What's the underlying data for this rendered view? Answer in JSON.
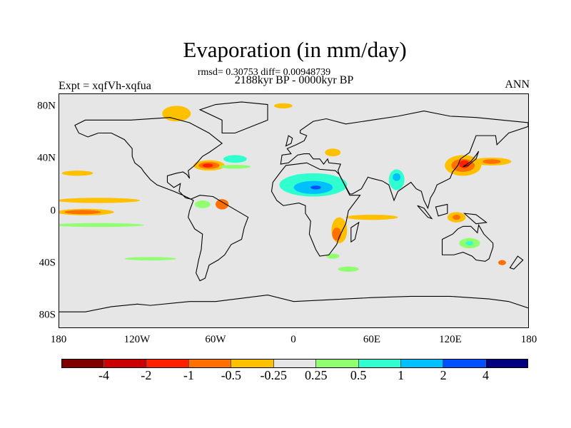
{
  "title": "Evaporation (in mm/day)",
  "subtitle_stats": "rmsd= 0.30753 diff= 0.00948739",
  "period": "2188kyr BP - 0000kyr BP",
  "left_label": "Expt = xqfVh-xqfua",
  "right_label": "ANN",
  "map": {
    "projection": "cylindrical equidistant",
    "lat_ticks": [
      "80N",
      "40N",
      "0",
      "40S",
      "80S"
    ],
    "lon_ticks": [
      "180",
      "120W",
      "60W",
      "0",
      "60E",
      "120E",
      "180"
    ]
  },
  "colorbar": {
    "colors": [
      "#800000",
      "#cc0000",
      "#ff2000",
      "#ff7000",
      "#ffc000",
      "#e6e6e6",
      "#90ff70",
      "#30ffd0",
      "#00c0ff",
      "#0050ff",
      "#000080"
    ],
    "labels": [
      "-4",
      "-2",
      "-1",
      "-0.5",
      "-0.25",
      "0.25",
      "0.5",
      "1",
      "2",
      "4"
    ]
  }
}
